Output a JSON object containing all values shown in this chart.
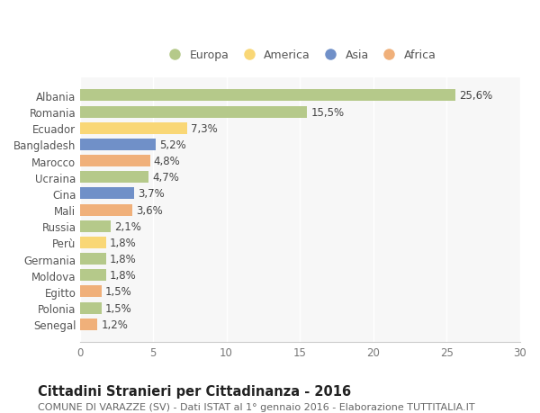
{
  "categories": [
    "Albania",
    "Romania",
    "Ecuador",
    "Bangladesh",
    "Marocco",
    "Ucraina",
    "Cina",
    "Mali",
    "Russia",
    "Perù",
    "Germania",
    "Moldova",
    "Egitto",
    "Polonia",
    "Senegal"
  ],
  "values": [
    25.6,
    15.5,
    7.3,
    5.2,
    4.8,
    4.7,
    3.7,
    3.6,
    2.1,
    1.8,
    1.8,
    1.8,
    1.5,
    1.5,
    1.2
  ],
  "labels": [
    "25,6%",
    "15,5%",
    "7,3%",
    "5,2%",
    "4,8%",
    "4,7%",
    "3,7%",
    "3,6%",
    "2,1%",
    "1,8%",
    "1,8%",
    "1,8%",
    "1,5%",
    "1,5%",
    "1,2%"
  ],
  "bar_colors": [
    "#b5c98a",
    "#b5c98a",
    "#f9d776",
    "#7090c8",
    "#f0b07a",
    "#b5c98a",
    "#7090c8",
    "#f0b07a",
    "#b5c98a",
    "#f9d776",
    "#b5c98a",
    "#b5c98a",
    "#f0b07a",
    "#b5c98a",
    "#f0b07a"
  ],
  "legend_labels": [
    "Europa",
    "America",
    "Asia",
    "Africa"
  ],
  "legend_colors": [
    "#b5c98a",
    "#f9d776",
    "#7090c8",
    "#f0b07a"
  ],
  "xlim": [
    0,
    30
  ],
  "xticks": [
    0,
    5,
    10,
    15,
    20,
    25,
    30
  ],
  "title": "Cittadini Stranieri per Cittadinanza - 2016",
  "subtitle": "COMUNE DI VARAZZE (SV) - Dati ISTAT al 1° gennaio 2016 - Elaborazione TUTTITALIA.IT",
  "bg_color": "#ffffff",
  "plot_bg_color": "#f7f7f7",
  "bar_height": 0.72,
  "label_fontsize": 8.5,
  "title_fontsize": 10.5,
  "subtitle_fontsize": 8.0,
  "tick_fontsize": 8.5,
  "legend_fontsize": 9.0
}
